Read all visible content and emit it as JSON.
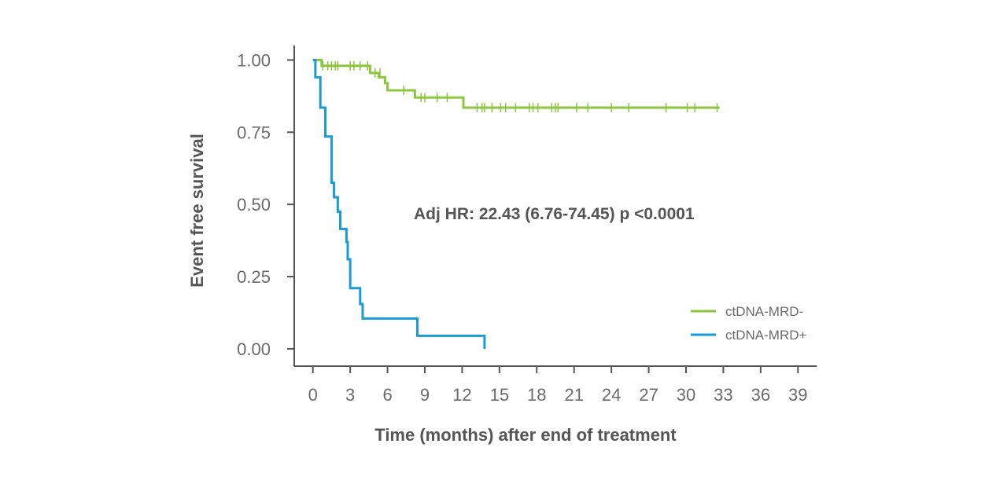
{
  "chart_data": {
    "type": "line",
    "subtype": "kaplan-meier",
    "xlabel": "Time (months) after end of treatment",
    "ylabel": "Event free survival",
    "annotation": "Adj HR: 22.43 (6.76-74.45) p <0.0001",
    "xlim": [
      -1.5,
      40.5
    ],
    "ylim": [
      -0.06,
      1.05
    ],
    "x_ticks": [
      0,
      3,
      6,
      9,
      12,
      15,
      18,
      21,
      24,
      27,
      30,
      33,
      36,
      39
    ],
    "y_ticks": [
      0.0,
      0.25,
      0.5,
      0.75,
      1.0
    ],
    "y_tick_labels": [
      "0.00",
      "0.25",
      "0.50",
      "0.75",
      "1.00"
    ],
    "grid": false,
    "legend_position": "bottom-right",
    "series": [
      {
        "name": "ctDNA-MRD-",
        "color": "#8cc63f",
        "steps": [
          [
            0,
            1.0
          ],
          [
            0.7,
            0.98
          ],
          [
            4.6,
            0.955
          ],
          [
            5.3,
            0.94
          ],
          [
            5.8,
            0.92
          ],
          [
            6.0,
            0.895
          ],
          [
            8.2,
            0.87
          ],
          [
            12.1,
            0.835
          ],
          [
            32.7,
            0.835
          ]
        ],
        "censored": [
          [
            0.8,
            0.98
          ],
          [
            1.2,
            0.98
          ],
          [
            1.5,
            0.98
          ],
          [
            1.8,
            0.98
          ],
          [
            2.0,
            0.98
          ],
          [
            3.0,
            0.98
          ],
          [
            3.3,
            0.98
          ],
          [
            3.8,
            0.98
          ],
          [
            4.4,
            0.98
          ],
          [
            5.0,
            0.955
          ],
          [
            5.4,
            0.955
          ],
          [
            7.3,
            0.895
          ],
          [
            8.7,
            0.87
          ],
          [
            9.0,
            0.87
          ],
          [
            10.0,
            0.87
          ],
          [
            10.8,
            0.87
          ],
          [
            13.2,
            0.835
          ],
          [
            13.6,
            0.835
          ],
          [
            13.8,
            0.835
          ],
          [
            14.4,
            0.835
          ],
          [
            15.1,
            0.835
          ],
          [
            15.5,
            0.835
          ],
          [
            16.3,
            0.835
          ],
          [
            17.4,
            0.835
          ],
          [
            17.7,
            0.835
          ],
          [
            18.1,
            0.835
          ],
          [
            19.2,
            0.835
          ],
          [
            19.5,
            0.835
          ],
          [
            19.7,
            0.835
          ],
          [
            21.2,
            0.835
          ],
          [
            22.1,
            0.835
          ],
          [
            24.0,
            0.835
          ],
          [
            25.4,
            0.835
          ],
          [
            28.4,
            0.835
          ],
          [
            30.1,
            0.835
          ],
          [
            30.7,
            0.835
          ],
          [
            32.5,
            0.835
          ]
        ]
      },
      {
        "name": "ctDNA-MRD+",
        "color": "#1a9ad6",
        "steps": [
          [
            0,
            1.0
          ],
          [
            0.2,
            0.94
          ],
          [
            0.6,
            0.835
          ],
          [
            1.0,
            0.735
          ],
          [
            1.5,
            0.575
          ],
          [
            1.7,
            0.525
          ],
          [
            2.0,
            0.475
          ],
          [
            2.2,
            0.415
          ],
          [
            2.7,
            0.37
          ],
          [
            2.8,
            0.31
          ],
          [
            3.0,
            0.21
          ],
          [
            3.8,
            0.155
          ],
          [
            4.0,
            0.105
          ],
          [
            8.4,
            0.045
          ],
          [
            13.8,
            0.0
          ]
        ],
        "censored": []
      }
    ]
  }
}
